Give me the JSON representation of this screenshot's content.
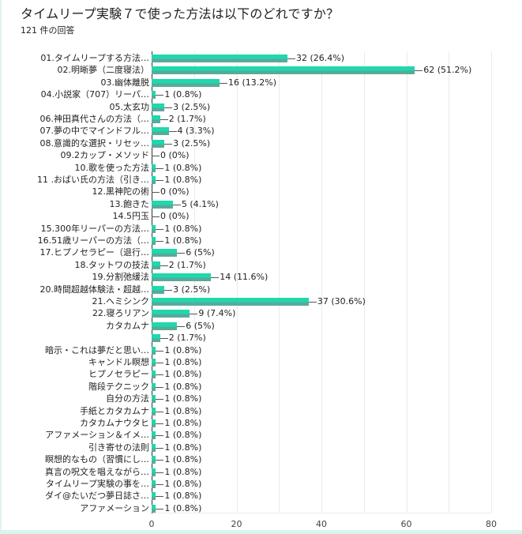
{
  "header": {
    "title": "タイムリープ実験７で使った方法は以下のどれですか？",
    "response_count": "121 件の回答"
  },
  "colors": {
    "bar": "#1fd8ab",
    "bar_shade": "#5fa89a",
    "gridline": "#ebebeb",
    "text": "#222222"
  },
  "chart_data": {
    "type": "bar",
    "orientation": "horizontal",
    "title": "タイムリープ実験７で使った方法は以下のどれですか？",
    "subtitle": "121 件の回答",
    "xlabel": "",
    "ylabel": "",
    "xlim": [
      0,
      80
    ],
    "x_ticks": [
      0,
      20,
      40,
      60,
      80
    ],
    "grid": true,
    "grid_step": 10,
    "legend": "none",
    "categories": [
      "01.タイムリープする方法…",
      "02.明晰夢（二度寝法）",
      "03.幽体離脱",
      "04.小説家（707）リーパ…",
      "05.太玄功",
      "06.神田真代さんの方法（…",
      "07.夢の中でマインドフル…",
      "08.意識的な選択・リセッ…",
      "09.2カップ・メソッド",
      "10.歌を使った方法",
      "11 .おばい氏の方法（引き…",
      "12.黒神陀の術",
      "13.飽きた",
      "14.5円玉",
      "15.300年リーパーの方法…",
      "16.51歳リーパーの方法（…",
      "17.ヒプノセラピー（退行…",
      "18.タットワの技法",
      "19.分割弛緩法",
      "20.時間超越体験法・超越…",
      "21.ヘミシンク",
      "22.寝ろリアン",
      "カタカムナ",
      "",
      "暗示・これは夢だと思い…",
      "キャンドル瞑想",
      "ヒプノセラピー",
      "階段テクニック",
      "自分の方法",
      "手紙とカタカムナ",
      "カタカムナウタヒ",
      "アファメーション＆イメ…",
      "引き寄せの法則",
      "瞑想的なもの（習慣にし…",
      "真言の呪文を唱えながら…",
      "タイムリープ実験の事を…",
      "ダイ@たいだつ夢日誌さ…",
      "アファメーション"
    ],
    "values": [
      32,
      62,
      16,
      1,
      3,
      2,
      4,
      3,
      0,
      1,
      1,
      0,
      5,
      0,
      1,
      1,
      6,
      2,
      14,
      3,
      37,
      9,
      6,
      2,
      1,
      1,
      1,
      1,
      1,
      1,
      1,
      1,
      1,
      1,
      1,
      1,
      1,
      1
    ],
    "percentages": [
      "26.4%",
      "51.2%",
      "13.2%",
      "0.8%",
      "2.5%",
      "1.7%",
      "3.3%",
      "2.5%",
      "0%",
      "0.8%",
      "0.8%",
      "0%",
      "4.1%",
      "0%",
      "0.8%",
      "0.8%",
      "5%",
      "1.7%",
      "11.6%",
      "2.5%",
      "30.6%",
      "7.4%",
      "5%",
      "1.7%",
      "0.8%",
      "0.8%",
      "0.8%",
      "0.8%",
      "0.8%",
      "0.8%",
      "0.8%",
      "0.8%",
      "0.8%",
      "0.8%",
      "0.8%",
      "0.8%",
      "0.8%",
      "0.8%"
    ],
    "value_labels": [
      "32 (26.4%)",
      "62 (51.2%)",
      "16 (13.2%)",
      "1 (0.8%)",
      "3 (2.5%)",
      "2 (1.7%)",
      "4 (3.3%)",
      "3 (2.5%)",
      "0 (0%)",
      "1 (0.8%)",
      "1 (0.8%)",
      "0 (0%)",
      "5 (4.1%)",
      "0 (0%)",
      "1 (0.8%)",
      "1 (0.8%)",
      "6 (5%)",
      "2 (1.7%)",
      "14 (11.6%)",
      "3 (2.5%)",
      "37 (30.6%)",
      "9 (7.4%)",
      "6 (5%)",
      "2 (1.7%)",
      "1 (0.8%)",
      "1 (0.8%)",
      "1 (0.8%)",
      "1 (0.8%)",
      "1 (0.8%)",
      "1 (0.8%)",
      "1 (0.8%)",
      "1 (0.8%)",
      "1 (0.8%)",
      "1 (0.8%)",
      "1 (0.8%)",
      "1 (0.8%)",
      "1 (0.8%)",
      "1 (0.8%)"
    ]
  }
}
